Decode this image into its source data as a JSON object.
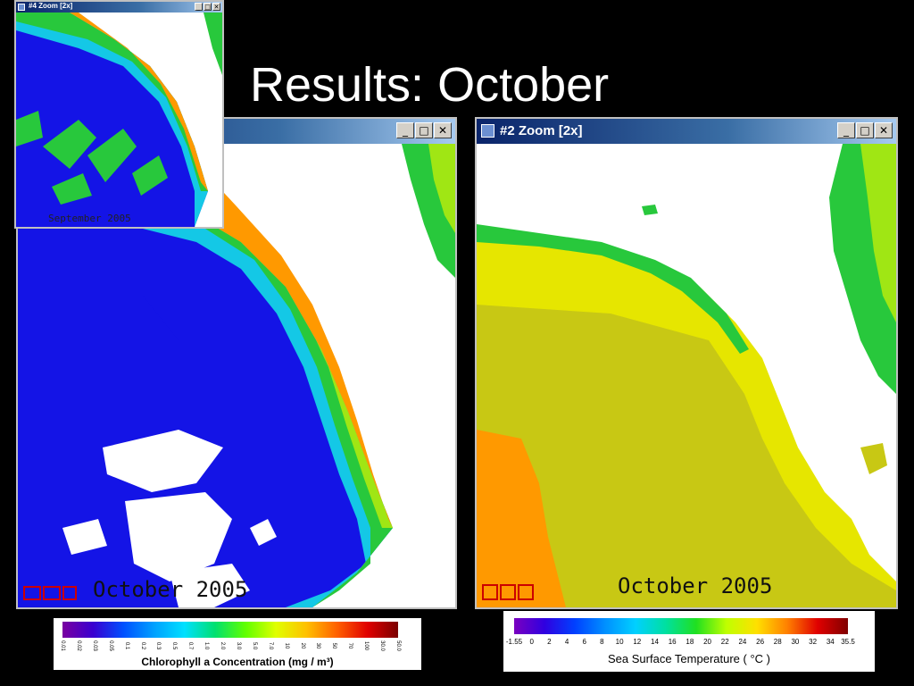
{
  "slide": {
    "title": "Results: October"
  },
  "windows": {
    "inset": {
      "title": "#4 Zoom [2x]",
      "map_label": "September 2005"
    },
    "chlorophyll": {
      "title": "",
      "map_label": "October 2005"
    },
    "sst": {
      "title": "#2 Zoom [2x]",
      "map_label": "October 2005"
    },
    "buttons": {
      "minimize": "_",
      "maximize": "□",
      "close": "✕"
    }
  },
  "icons": {
    "app": "window-app-icon",
    "controls": [
      "zoom-box-icon",
      "crosshair-icon",
      "square-icon"
    ]
  },
  "colors": {
    "ocean_low_chl": "#1414e6",
    "coast_high_chl": "#ff8c00",
    "sst_warm": "#c8c814",
    "sst_hot": "#ff9900",
    "land": "#ffffff"
  },
  "legends": {
    "chlorophyll": {
      "caption": "Chlorophyll a Concentration  (mg / m³)",
      "ticks": [
        "0.01",
        "0.02",
        "0.03",
        "0.05",
        "0.1",
        "0.2",
        "0.3",
        "0.5",
        "0.7",
        "1.0",
        "2.0",
        "3.0",
        "5.0",
        "7.0",
        "10",
        "20",
        "30",
        "50",
        "70",
        "100",
        "30.0",
        "50.0"
      ]
    },
    "sst": {
      "caption": "Sea Surface Temperature  ( °C )",
      "ticks": [
        "-1.55",
        "0",
        "2",
        "4",
        "6",
        "8",
        "10",
        "12",
        "14",
        "16",
        "18",
        "20",
        "22",
        "24",
        "26",
        "28",
        "30",
        "32",
        "34",
        "35.5"
      ]
    }
  }
}
